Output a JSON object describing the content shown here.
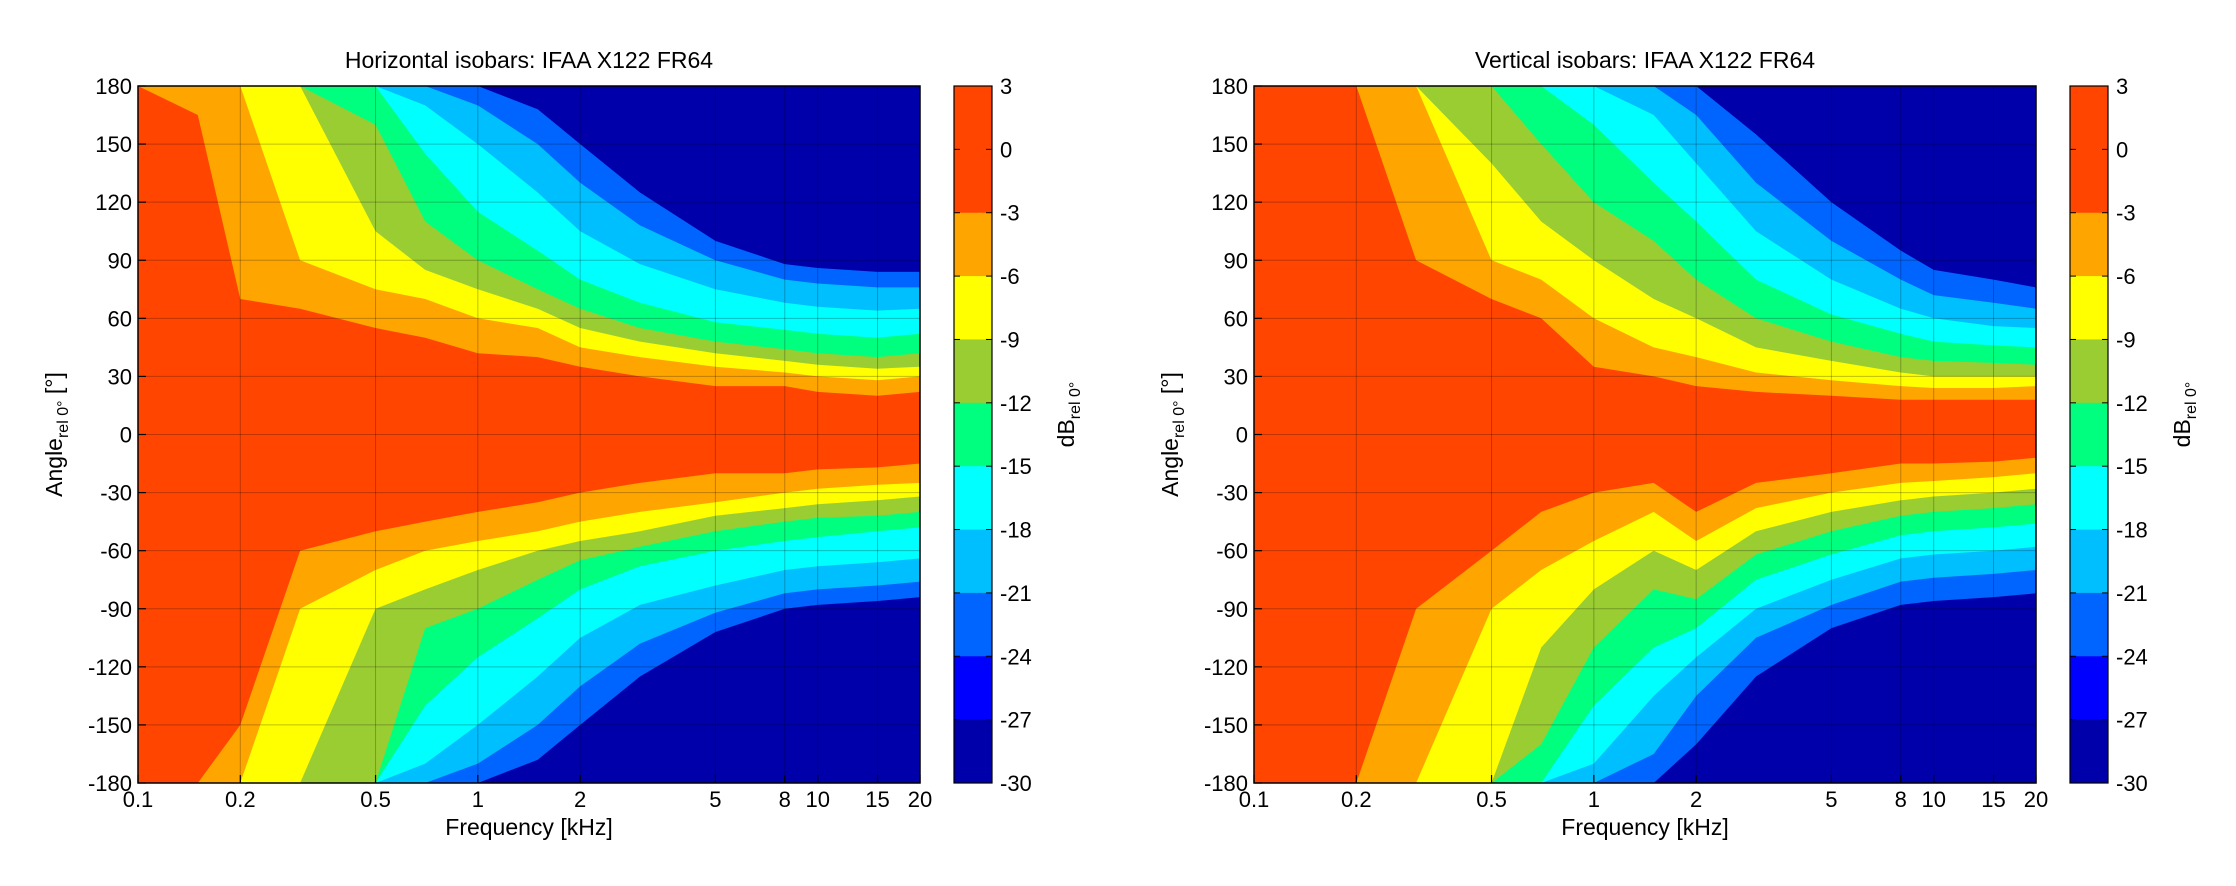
{
  "chart_data": [
    {
      "type": "heatmap",
      "subtype": "filled-contour",
      "title": "Horizontal isobars: IFAA  X122  FR64",
      "xlabel": "Frequency [kHz]",
      "ylabel_main": "Angle",
      "ylabel_sub": "rel 0°",
      "ylabel_unit": "[°]",
      "xscale": "log",
      "xlim": [
        0.1,
        20
      ],
      "ylim": [
        -180,
        180
      ],
      "xticks": [
        0.1,
        0.2,
        0.5,
        1,
        2,
        5,
        8,
        10,
        15,
        20
      ],
      "xtick_labels": [
        "0.1",
        "0.2",
        "0.5",
        "1",
        "2",
        "5",
        "8",
        "10",
        "15",
        "20"
      ],
      "yticks": [
        180,
        150,
        120,
        90,
        60,
        30,
        0,
        -30,
        -60,
        -90,
        -120,
        -150,
        -180
      ],
      "ytick_labels": [
        "180",
        "150",
        "120",
        "90",
        "60",
        "30",
        "0",
        "-30",
        "-60",
        "-90",
        "-120",
        "-150",
        "-180"
      ],
      "grid": true,
      "colorbar_label_main": "dB",
      "colorbar_label_sub": "rel 0°",
      "colorbar_ticks": [
        3,
        0,
        -3,
        -6,
        -9,
        -12,
        -15,
        -18,
        -21,
        -24,
        -27,
        -30
      ],
      "colorbar_tick_labels": [
        "3",
        "0",
        "-3",
        "-6",
        "-9",
        "-12",
        "-15",
        "-18",
        "-21",
        "-24",
        "-27",
        "-30"
      ],
      "contour_levels": [
        {
          "from": 0,
          "to": 3,
          "color": "#ff4500"
        },
        {
          "from": -3,
          "to": 0,
          "color": "#ff4500"
        },
        {
          "from": -6,
          "to": -3,
          "color": "#ffa500"
        },
        {
          "from": -9,
          "to": -6,
          "color": "#ffff00"
        },
        {
          "from": -12,
          "to": -9,
          "color": "#9acd32"
        },
        {
          "from": -15,
          "to": -12,
          "color": "#00ff7f"
        },
        {
          "from": -18,
          "to": -15,
          "color": "#00ffff"
        },
        {
          "from": -21,
          "to": -18,
          "color": "#00bfff"
        },
        {
          "from": -24,
          "to": -21,
          "color": "#0064ff"
        },
        {
          "from": -27,
          "to": -24,
          "color": "#0000ff"
        },
        {
          "from": -30,
          "to": -27,
          "color": "#0000aa"
        }
      ],
      "series": [
        {
          "name": "-3 dB",
          "freqs": [
            0.1,
            0.15,
            0.2,
            0.3,
            0.5,
            0.7,
            1,
            1.5,
            2,
            3,
            5,
            8,
            10,
            15,
            20
          ],
          "upper": [
            180,
            165,
            70,
            65,
            55,
            50,
            42,
            40,
            35,
            30,
            25,
            25,
            22,
            20,
            22
          ],
          "lower": [
            -180,
            -180,
            -150,
            -60,
            -50,
            -45,
            -40,
            -35,
            -30,
            -25,
            -20,
            -20,
            -18,
            -17,
            -15
          ]
        },
        {
          "name": "-6 dB",
          "freqs": [
            0.1,
            0.15,
            0.2,
            0.3,
            0.5,
            0.7,
            1,
            1.5,
            2,
            3,
            5,
            8,
            10,
            15,
            20
          ],
          "upper": [
            180,
            180,
            180,
            90,
            75,
            70,
            60,
            55,
            45,
            40,
            35,
            32,
            30,
            28,
            30
          ],
          "lower": [
            -180,
            -180,
            -180,
            -90,
            -70,
            -60,
            -55,
            -50,
            -45,
            -40,
            -35,
            -30,
            -28,
            -26,
            -25
          ]
        },
        {
          "name": "-9 dB",
          "freqs": [
            0.1,
            0.15,
            0.2,
            0.3,
            0.5,
            0.7,
            1,
            1.5,
            2,
            3,
            5,
            8,
            10,
            15,
            20
          ],
          "upper": [
            180,
            180,
            180,
            180,
            105,
            85,
            75,
            65,
            55,
            48,
            42,
            38,
            36,
            34,
            35
          ],
          "lower": [
            -180,
            -180,
            -180,
            -180,
            -90,
            -80,
            -70,
            -60,
            -55,
            -50,
            -42,
            -38,
            -36,
            -34,
            -32
          ]
        },
        {
          "name": "-12 dB",
          "freqs": [
            0.1,
            0.15,
            0.2,
            0.3,
            0.5,
            0.7,
            1,
            1.5,
            2,
            3,
            5,
            8,
            10,
            15,
            20
          ],
          "upper": [
            180,
            180,
            180,
            180,
            160,
            110,
            90,
            75,
            65,
            55,
            48,
            44,
            42,
            40,
            42
          ],
          "lower": [
            -180,
            -180,
            -180,
            -180,
            -180,
            -100,
            -90,
            -75,
            -65,
            -58,
            -50,
            -45,
            -43,
            -42,
            -40
          ]
        },
        {
          "name": "-15 dB",
          "freqs": [
            0.1,
            0.15,
            0.2,
            0.3,
            0.5,
            0.7,
            1,
            1.5,
            2,
            3,
            5,
            8,
            10,
            15,
            20
          ],
          "upper": [
            180,
            180,
            180,
            180,
            180,
            145,
            115,
            95,
            80,
            68,
            58,
            54,
            52,
            50,
            52
          ],
          "lower": [
            -180,
            -180,
            -180,
            -180,
            -180,
            -140,
            -115,
            -95,
            -80,
            -68,
            -60,
            -55,
            -53,
            -50,
            -48
          ]
        },
        {
          "name": "-18 dB",
          "freqs": [
            0.1,
            0.15,
            0.2,
            0.3,
            0.5,
            0.7,
            1,
            1.5,
            2,
            3,
            5,
            8,
            10,
            15,
            20
          ],
          "upper": [
            180,
            180,
            180,
            180,
            180,
            170,
            150,
            125,
            105,
            88,
            75,
            68,
            66,
            64,
            65
          ],
          "lower": [
            -180,
            -180,
            -180,
            -180,
            -180,
            -170,
            -150,
            -125,
            -105,
            -88,
            -78,
            -70,
            -68,
            -66,
            -64
          ]
        },
        {
          "name": "-21 dB",
          "freqs": [
            0.1,
            0.15,
            0.2,
            0.3,
            0.5,
            0.7,
            1,
            1.5,
            2,
            3,
            5,
            8,
            10,
            15,
            20
          ],
          "upper": [
            180,
            180,
            180,
            180,
            180,
            180,
            170,
            150,
            130,
            108,
            90,
            80,
            78,
            76,
            76
          ],
          "lower": [
            -180,
            -180,
            -180,
            -180,
            -180,
            -180,
            -170,
            -150,
            -130,
            -108,
            -92,
            -82,
            -80,
            -78,
            -76
          ]
        },
        {
          "name": "-24 dB",
          "freqs": [
            0.1,
            0.15,
            0.2,
            0.3,
            0.5,
            0.7,
            1,
            1.5,
            2,
            3,
            5,
            8,
            10,
            15,
            20
          ],
          "upper": [
            180,
            180,
            180,
            180,
            180,
            180,
            180,
            168,
            150,
            125,
            100,
            88,
            86,
            84,
            84
          ],
          "lower": [
            -180,
            -180,
            -180,
            -180,
            -180,
            -180,
            -180,
            -168,
            -150,
            -125,
            -102,
            -90,
            -88,
            -86,
            -84
          ]
        }
      ]
    },
    {
      "type": "heatmap",
      "subtype": "filled-contour",
      "title": "Vertical isobars: IFAA  X122  FR64",
      "xlabel": "Frequency [kHz]",
      "ylabel_main": "Angle",
      "ylabel_sub": "rel 0°",
      "ylabel_unit": "[°]",
      "xscale": "log",
      "xlim": [
        0.1,
        20
      ],
      "ylim": [
        -180,
        180
      ],
      "xticks": [
        0.1,
        0.2,
        0.5,
        1,
        2,
        5,
        8,
        10,
        15,
        20
      ],
      "xtick_labels": [
        "0.1",
        "0.2",
        "0.5",
        "1",
        "2",
        "5",
        "8",
        "10",
        "15",
        "20"
      ],
      "yticks": [
        180,
        150,
        120,
        90,
        60,
        30,
        0,
        -30,
        -60,
        -90,
        -120,
        -150,
        -180
      ],
      "ytick_labels": [
        "180",
        "150",
        "120",
        "90",
        "60",
        "30",
        "0",
        "-30",
        "-60",
        "-90",
        "-120",
        "-150",
        "-180"
      ],
      "grid": true,
      "colorbar_label_main": "dB",
      "colorbar_label_sub": "rel 0°",
      "colorbar_ticks": [
        3,
        0,
        -3,
        -6,
        -9,
        -12,
        -15,
        -18,
        -21,
        -24,
        -27,
        -30
      ],
      "colorbar_tick_labels": [
        "3",
        "0",
        "-3",
        "-6",
        "-9",
        "-12",
        "-15",
        "-18",
        "-21",
        "-24",
        "-27",
        "-30"
      ],
      "contour_levels": [
        {
          "from": 0,
          "to": 3,
          "color": "#ff4500"
        },
        {
          "from": -3,
          "to": 0,
          "color": "#ff4500"
        },
        {
          "from": -6,
          "to": -3,
          "color": "#ffa500"
        },
        {
          "from": -9,
          "to": -6,
          "color": "#ffff00"
        },
        {
          "from": -12,
          "to": -9,
          "color": "#9acd32"
        },
        {
          "from": -15,
          "to": -12,
          "color": "#00ff7f"
        },
        {
          "from": -18,
          "to": -15,
          "color": "#00ffff"
        },
        {
          "from": -21,
          "to": -18,
          "color": "#00bfff"
        },
        {
          "from": -24,
          "to": -21,
          "color": "#0064ff"
        },
        {
          "from": -27,
          "to": -24,
          "color": "#0000ff"
        },
        {
          "from": -30,
          "to": -27,
          "color": "#0000aa"
        }
      ],
      "series": [
        {
          "name": "-3 dB",
          "freqs": [
            0.1,
            0.15,
            0.2,
            0.3,
            0.5,
            0.7,
            1,
            1.5,
            2,
            3,
            5,
            8,
            10,
            15,
            20
          ],
          "upper": [
            180,
            180,
            180,
            90,
            70,
            60,
            35,
            30,
            25,
            22,
            20,
            18,
            18,
            18,
            18
          ],
          "lower": [
            -180,
            -180,
            -180,
            -90,
            -60,
            -40,
            -30,
            -25,
            -40,
            -25,
            -20,
            -15,
            -15,
            -14,
            -12
          ]
        },
        {
          "name": "-6 dB",
          "freqs": [
            0.1,
            0.15,
            0.2,
            0.3,
            0.5,
            0.7,
            1,
            1.5,
            2,
            3,
            5,
            8,
            10,
            15,
            20
          ],
          "upper": [
            180,
            180,
            180,
            180,
            90,
            80,
            60,
            45,
            40,
            32,
            28,
            25,
            24,
            24,
            25
          ],
          "lower": [
            -180,
            -180,
            -180,
            -180,
            -90,
            -70,
            -55,
            -40,
            -55,
            -38,
            -30,
            -25,
            -24,
            -22,
            -20
          ]
        },
        {
          "name": "-9 dB",
          "freqs": [
            0.1,
            0.15,
            0.2,
            0.3,
            0.5,
            0.7,
            1,
            1.5,
            2,
            3,
            5,
            8,
            10,
            15,
            20
          ],
          "upper": [
            180,
            180,
            180,
            180,
            140,
            110,
            90,
            70,
            60,
            45,
            38,
            32,
            30,
            30,
            30
          ],
          "lower": [
            -180,
            -180,
            -180,
            -180,
            -180,
            -110,
            -80,
            -60,
            -70,
            -50,
            -40,
            -34,
            -32,
            -30,
            -28
          ]
        },
        {
          "name": "-12 dB",
          "freqs": [
            0.1,
            0.15,
            0.2,
            0.3,
            0.5,
            0.7,
            1,
            1.5,
            2,
            3,
            5,
            8,
            10,
            15,
            20
          ],
          "upper": [
            180,
            180,
            180,
            180,
            180,
            150,
            120,
            100,
            80,
            60,
            48,
            40,
            38,
            37,
            36
          ],
          "lower": [
            -180,
            -180,
            -180,
            -180,
            -180,
            -160,
            -110,
            -80,
            -85,
            -62,
            -50,
            -42,
            -40,
            -38,
            -36
          ]
        },
        {
          "name": "-15 dB",
          "freqs": [
            0.1,
            0.15,
            0.2,
            0.3,
            0.5,
            0.7,
            1,
            1.5,
            2,
            3,
            5,
            8,
            10,
            15,
            20
          ],
          "upper": [
            180,
            180,
            180,
            180,
            180,
            180,
            160,
            130,
            110,
            80,
            62,
            52,
            48,
            46,
            45
          ],
          "lower": [
            -180,
            -180,
            -180,
            -180,
            -180,
            -180,
            -140,
            -110,
            -100,
            -75,
            -62,
            -52,
            -50,
            -48,
            -46
          ]
        },
        {
          "name": "-18 dB",
          "freqs": [
            0.1,
            0.15,
            0.2,
            0.3,
            0.5,
            0.7,
            1,
            1.5,
            2,
            3,
            5,
            8,
            10,
            15,
            20
          ],
          "upper": [
            180,
            180,
            180,
            180,
            180,
            180,
            180,
            165,
            140,
            105,
            80,
            65,
            60,
            56,
            55
          ],
          "lower": [
            -180,
            -180,
            -180,
            -180,
            -180,
            -180,
            -170,
            -135,
            -115,
            -90,
            -75,
            -64,
            -62,
            -60,
            -58
          ]
        },
        {
          "name": "-21 dB",
          "freqs": [
            0.1,
            0.15,
            0.2,
            0.3,
            0.5,
            0.7,
            1,
            1.5,
            2,
            3,
            5,
            8,
            10,
            15,
            20
          ],
          "upper": [
            180,
            180,
            180,
            180,
            180,
            180,
            180,
            180,
            165,
            130,
            100,
            80,
            72,
            68,
            65
          ],
          "lower": [
            -180,
            -180,
            -180,
            -180,
            -180,
            -180,
            -180,
            -165,
            -135,
            -105,
            -88,
            -76,
            -74,
            -72,
            -70
          ]
        },
        {
          "name": "-24 dB",
          "freqs": [
            0.1,
            0.15,
            0.2,
            0.3,
            0.5,
            0.7,
            1,
            1.5,
            2,
            3,
            5,
            8,
            10,
            15,
            20
          ],
          "upper": [
            180,
            180,
            180,
            180,
            180,
            180,
            180,
            180,
            180,
            155,
            120,
            95,
            85,
            80,
            76
          ],
          "lower": [
            -180,
            -180,
            -180,
            -180,
            -180,
            -180,
            -180,
            -180,
            -160,
            -125,
            -100,
            -88,
            -86,
            -84,
            -82
          ]
        }
      ]
    }
  ]
}
